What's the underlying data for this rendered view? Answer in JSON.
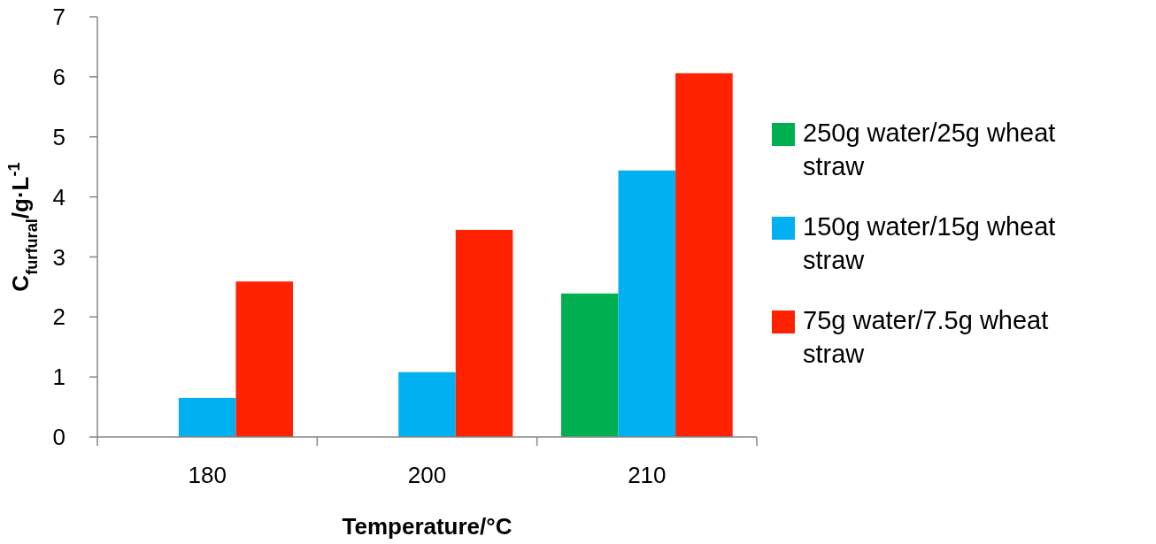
{
  "chart_data": {
    "type": "bar",
    "xlabel": "Temperature/°C",
    "ylabel": "C$_{furfural}$/g·L$^{-1}$",
    "categories": [
      "180",
      "200",
      "210"
    ],
    "series": [
      {
        "name": "250g water/25g wheat straw",
        "color": "#00b050",
        "values": [
          null,
          null,
          2.39
        ]
      },
      {
        "name": "150g water/15g wheat straw",
        "color": "#00b0f0",
        "values": [
          0.65,
          1.08,
          4.44
        ]
      },
      {
        "name": "75g water/7.5g wheat straw",
        "color": "#ff2200",
        "values": [
          2.59,
          3.45,
          6.06
        ]
      }
    ],
    "ylim": [
      0,
      7
    ],
    "yticks": [
      0,
      1,
      2,
      3,
      4,
      5,
      6,
      7
    ],
    "grid": false,
    "legend": "right"
  }
}
